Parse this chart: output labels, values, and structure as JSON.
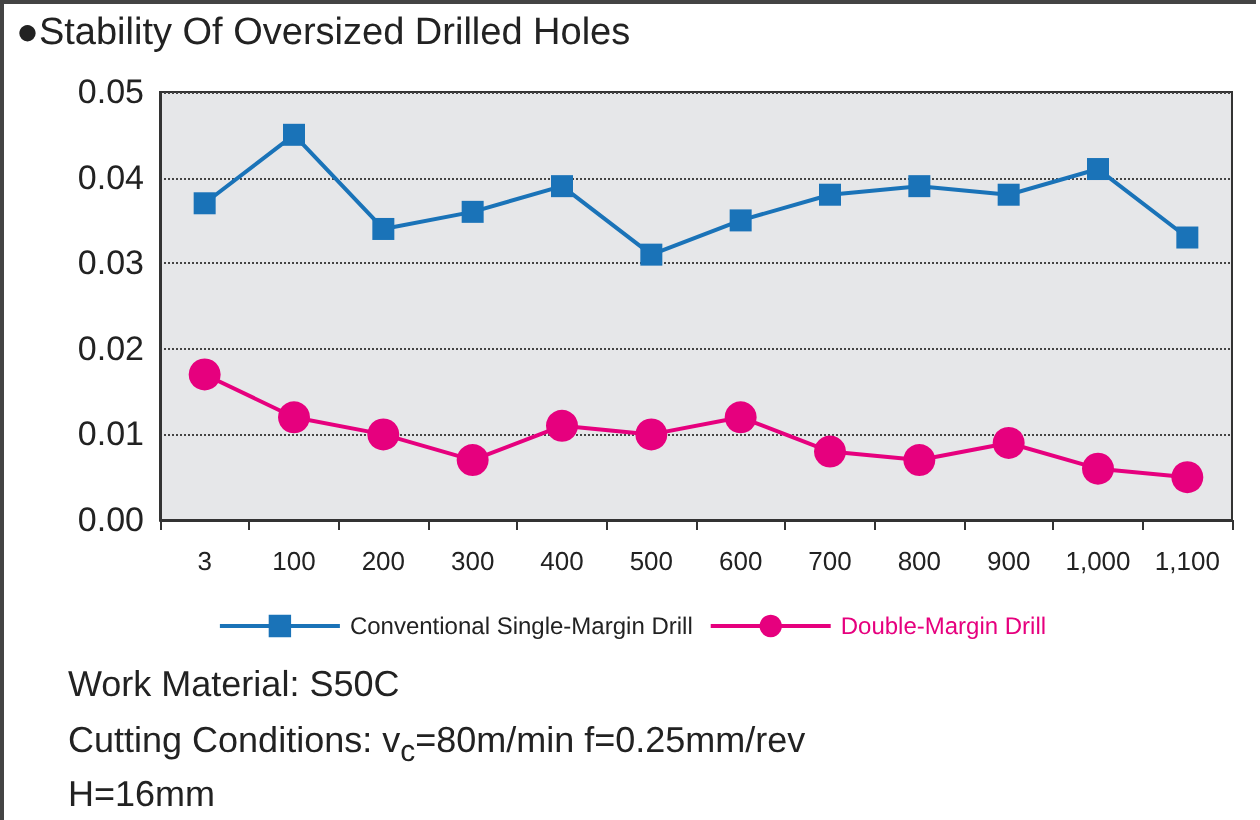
{
  "chart_data": {
    "type": "line",
    "title": "●Stability Of Oversized Drilled Holes",
    "categories": [
      "3",
      "100",
      "200",
      "300",
      "400",
      "500",
      "600",
      "700",
      "800",
      "900",
      "1,000",
      "1,100"
    ],
    "series": [
      {
        "name": "Conventional Single-Margin Drill",
        "color": "#1a73b8",
        "marker": "square",
        "values": [
          0.037,
          0.045,
          0.034,
          0.036,
          0.039,
          0.031,
          0.035,
          0.038,
          0.039,
          0.038,
          0.041,
          0.033
        ]
      },
      {
        "name": "Double-Margin Drill",
        "color": "#e6007e",
        "marker": "circle",
        "values": [
          0.017,
          0.012,
          0.01,
          0.007,
          0.011,
          0.01,
          0.012,
          0.008,
          0.007,
          0.009,
          0.006,
          0.005
        ]
      }
    ],
    "ylim": [
      0,
      0.05
    ],
    "yticks": [
      {
        "value": 0,
        "label": "0.00"
      },
      {
        "value": 0.01,
        "label": "0.01"
      },
      {
        "value": 0.02,
        "label": "0.02"
      },
      {
        "value": 0.03,
        "label": "0.03"
      },
      {
        "value": 0.04,
        "label": "0.04"
      },
      {
        "value": 0.05,
        "label": "0.05"
      }
    ],
    "grid": "y",
    "legend": "bottom",
    "line_style": "solid",
    "annotations": [
      "Work Material: S50C",
      "Cutting Conditions: v$_{c}$=80m/min  f=0.25mm/rev\nH=16mm"
    ]
  }
}
